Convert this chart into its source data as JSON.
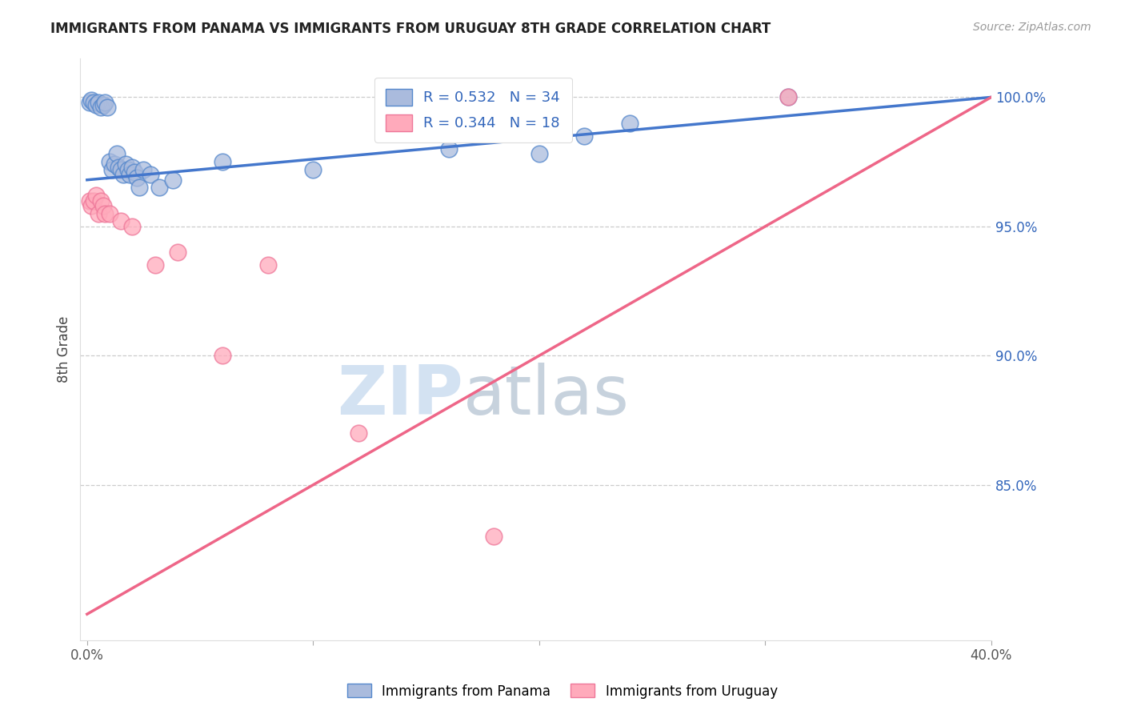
{
  "title": "IMMIGRANTS FROM PANAMA VS IMMIGRANTS FROM URUGUAY 8TH GRADE CORRELATION CHART",
  "source": "Source: ZipAtlas.com",
  "ylabel": "8th Grade",
  "yaxis_labels": [
    "100.0%",
    "95.0%",
    "90.0%",
    "85.0%"
  ],
  "yaxis_values": [
    1.0,
    0.95,
    0.9,
    0.85
  ],
  "legend_blue_R": "R = 0.532",
  "legend_blue_N": "N = 34",
  "legend_pink_R": "R = 0.344",
  "legend_pink_N": "N = 18",
  "legend_blue_label": "Immigrants from Panama",
  "legend_pink_label": "Immigrants from Uruguay",
  "blue_fill": "#AABBDD",
  "blue_edge": "#5588CC",
  "pink_fill": "#FFAABB",
  "pink_edge": "#EE7799",
  "line_blue": "#4477CC",
  "line_pink": "#EE6688",
  "text_blue": "#3366BB",
  "yaxis_color": "#3366BB",
  "panama_x": [
    0.001,
    0.002,
    0.003,
    0.004,
    0.005,
    0.006,
    0.007,
    0.008,
    0.009,
    0.01,
    0.011,
    0.012,
    0.013,
    0.014,
    0.015,
    0.016,
    0.017,
    0.018,
    0.019,
    0.02,
    0.021,
    0.022,
    0.023,
    0.025,
    0.028,
    0.032,
    0.038,
    0.06,
    0.1,
    0.16,
    0.2,
    0.22,
    0.24,
    0.31
  ],
  "panama_y": [
    0.998,
    0.999,
    0.998,
    0.997,
    0.998,
    0.996,
    0.997,
    0.998,
    0.996,
    0.975,
    0.972,
    0.974,
    0.978,
    0.973,
    0.972,
    0.97,
    0.974,
    0.972,
    0.97,
    0.973,
    0.971,
    0.969,
    0.965,
    0.972,
    0.97,
    0.965,
    0.968,
    0.975,
    0.972,
    0.98,
    0.978,
    0.985,
    0.99,
    1.0
  ],
  "uruguay_x": [
    0.001,
    0.002,
    0.003,
    0.004,
    0.005,
    0.006,
    0.007,
    0.008,
    0.01,
    0.015,
    0.02,
    0.03,
    0.04,
    0.06,
    0.08,
    0.12,
    0.18,
    0.31
  ],
  "uruguay_y": [
    0.96,
    0.958,
    0.96,
    0.962,
    0.955,
    0.96,
    0.958,
    0.955,
    0.955,
    0.952,
    0.95,
    0.935,
    0.94,
    0.9,
    0.935,
    0.87,
    0.83,
    1.0
  ],
  "blue_trend_x0": 0.0,
  "blue_trend_x1": 0.4,
  "blue_trend_y0": 0.968,
  "blue_trend_y1": 1.0,
  "pink_trend_x0": 0.0,
  "pink_trend_x1": 0.4,
  "pink_trend_y0": 0.8,
  "pink_trend_y1": 1.0,
  "xlim_min": -0.003,
  "xlim_max": 0.4,
  "ylim_min": 0.79,
  "ylim_max": 1.015
}
